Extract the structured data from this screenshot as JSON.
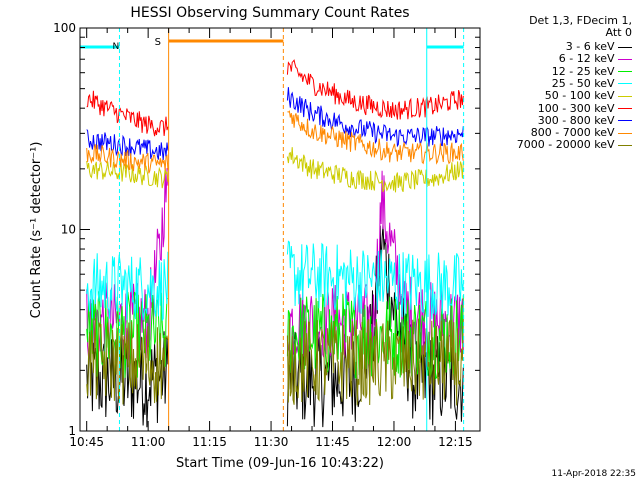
{
  "chart_data": {
    "type": "line",
    "title": "HESSI Observing Summary Count Rates",
    "xlabel": "Start Time (09-Jun-16 10:43:22)",
    "ylabel": "Count Rate (s⁻¹ detector⁻¹)",
    "yscale": "log",
    "ylim": [
      1,
      100
    ],
    "xlim": [
      "10:43:22",
      "12:21:00"
    ],
    "x_ticks": [
      "10:45",
      "11:00",
      "11:15",
      "11:30",
      "11:45",
      "12:00",
      "12:15"
    ],
    "y_tick_labels": [
      "1",
      "10",
      "100"
    ],
    "grid": false,
    "legend_header": [
      "Det 1,3, FDecim 1,",
      "Att 0"
    ],
    "legend_position": "outside-right",
    "data_gap": [
      "11:05",
      "11:33"
    ],
    "series": [
      {
        "name": "3 - 6 keV",
        "color": "#000000",
        "x": [
          "10:45",
          "10:50",
          "10:55",
          "11:00",
          "11:04",
          "11:34",
          "11:40",
          "11:50",
          "11:55",
          "11:57",
          "12:00",
          "12:05",
          "12:10",
          "12:17"
        ],
        "values": [
          1.8,
          1.8,
          1.8,
          1.8,
          1.9,
          1.8,
          1.8,
          1.8,
          3,
          9,
          4,
          1.8,
          1.8,
          1.8
        ]
      },
      {
        "name": "6 - 12 keV",
        "color": "#cc00cc",
        "x": [
          "10:45",
          "10:55",
          "11:00",
          "11:03",
          "11:04",
          "11:34",
          "11:45",
          "11:55",
          "11:57",
          "12:00",
          "12:03",
          "12:10",
          "12:17"
        ],
        "values": [
          3.5,
          3.5,
          3.5,
          8,
          15,
          3.5,
          3.5,
          3.5,
          14,
          7,
          4,
          3.5,
          3.5
        ]
      },
      {
        "name": "12 - 25 keV",
        "color": "#00ee00",
        "x": [
          "10:45",
          "11:04",
          "11:34",
          "12:17"
        ],
        "values": [
          3.0,
          3.0,
          3.0,
          3.0
        ]
      },
      {
        "name": "25 - 50 keV",
        "color": "#00ffff",
        "x": [
          "10:45",
          "11:04",
          "11:34",
          "12:17"
        ],
        "values": [
          5.2,
          5.2,
          6.0,
          5.2
        ]
      },
      {
        "name": "50 - 100 keV",
        "color": "#cccc00",
        "x": [
          "10:45",
          "10:55",
          "11:04",
          "11:34",
          "11:40",
          "11:50",
          "12:00",
          "12:10",
          "12:17"
        ],
        "values": [
          20,
          19,
          18,
          24,
          20,
          18,
          17,
          18,
          20
        ]
      },
      {
        "name": "100 - 300 keV",
        "color": "#ff0000",
        "x": [
          "10:45",
          "10:50",
          "10:55",
          "11:00",
          "11:04",
          "11:34",
          "11:40",
          "11:50",
          "12:00",
          "12:10",
          "12:17"
        ],
        "values": [
          45,
          40,
          36,
          33,
          32,
          65,
          53,
          43,
          39,
          41,
          45
        ]
      },
      {
        "name": "300 - 800 keV",
        "color": "#0000ff",
        "x": [
          "10:45",
          "10:55",
          "11:04",
          "11:34",
          "11:40",
          "11:50",
          "12:00",
          "12:10",
          "12:17"
        ],
        "values": [
          28,
          26,
          24,
          46,
          38,
          32,
          29,
          29,
          30
        ]
      },
      {
        "name": "800 - 7000 keV",
        "color": "#ff8800",
        "x": [
          "10:45",
          "10:55",
          "11:04",
          "11:34",
          "11:40",
          "11:50",
          "12:00",
          "12:10",
          "12:17"
        ],
        "values": [
          24,
          22,
          21,
          38,
          31,
          27,
          24,
          24,
          24
        ]
      },
      {
        "name": "7000 - 20000 keV",
        "color": "#808000",
        "x": [
          "10:45",
          "11:04",
          "11:34",
          "12:17"
        ],
        "values": [
          2.2,
          2.2,
          2.2,
          2.2
        ]
      }
    ],
    "annotations": [
      {
        "label": "N",
        "color": "#00ffff",
        "type": "night",
        "spans": [
          [
            "10:43:22",
            "10:53"
          ],
          [
            "12:08",
            "12:17"
          ]
        ]
      },
      {
        "label": "S",
        "color": "#ff8800",
        "type": "saa",
        "spans": [
          [
            "11:05",
            "11:33"
          ]
        ]
      }
    ]
  },
  "footer": {
    "timestamp": "11-Apr-2018 22:35"
  }
}
